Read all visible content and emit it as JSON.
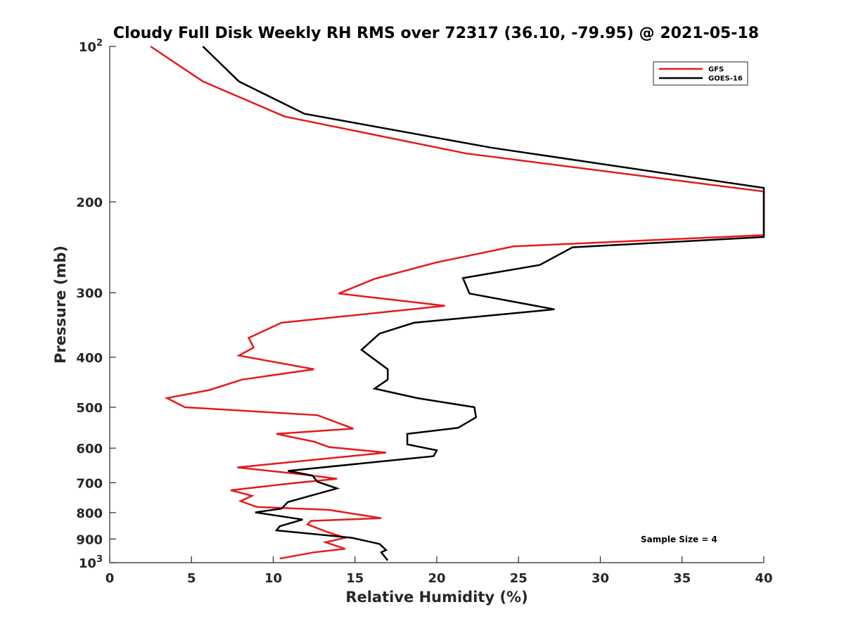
{
  "chart_data": {
    "type": "line",
    "title": "Cloudy Full Disk Weekly RH RMS over 72317 (36.10, -79.95) @ 2021-05-18",
    "xlabel": "Relative Humidity (%)",
    "ylabel": "Pressure (mb)",
    "xlim": [
      0,
      40
    ],
    "ylim": [
      100,
      1000
    ],
    "y_scale": "log",
    "y_reversed": true,
    "grid": false,
    "legend_position": "top-right",
    "x_ticks": [
      0,
      5,
      10,
      15,
      20,
      25,
      30,
      35,
      40
    ],
    "x_tick_labels": [
      "0",
      "5",
      "10",
      "15",
      "20",
      "25",
      "30",
      "35",
      "40"
    ],
    "y_ticks": [
      100,
      200,
      300,
      400,
      500,
      600,
      700,
      800,
      900,
      1000
    ],
    "y_tick_labels": [
      {
        "base": "10",
        "sup": "2"
      },
      {
        "base": "200",
        "sup": ""
      },
      {
        "base": "300",
        "sup": ""
      },
      {
        "base": "400",
        "sup": ""
      },
      {
        "base": "500",
        "sup": ""
      },
      {
        "base": "600",
        "sup": ""
      },
      {
        "base": "700",
        "sup": ""
      },
      {
        "base": "800",
        "sup": ""
      },
      {
        "base": "900",
        "sup": ""
      },
      {
        "base": "10",
        "sup": "3"
      }
    ],
    "annotation": "Sample Size = 4",
    "series": [
      {
        "name": "GFS",
        "color": "#e41a1c",
        "points": [
          [
            2.5,
            100
          ],
          [
            5.7,
            116.9
          ],
          [
            10.7,
            136.7
          ],
          [
            21.8,
            161.2
          ],
          [
            40,
            191
          ],
          [
            40,
            232
          ],
          [
            24.7,
            244
          ],
          [
            20,
            262
          ],
          [
            16.2,
            282
          ],
          [
            14,
            301
          ],
          [
            20.5,
            318
          ],
          [
            10.5,
            343
          ],
          [
            8.5,
            367
          ],
          [
            8.8,
            383
          ],
          [
            7.9,
            397
          ],
          [
            12.5,
            422
          ],
          [
            8.1,
            442
          ],
          [
            6.1,
            463
          ],
          [
            3.5,
            480
          ],
          [
            4.6,
            500
          ],
          [
            12.7,
            518
          ],
          [
            14.9,
            550
          ],
          [
            10.2,
            563
          ],
          [
            12.5,
            583
          ],
          [
            13.4,
            597
          ],
          [
            16.9,
            612
          ],
          [
            7.8,
            654
          ],
          [
            11.7,
            674
          ],
          [
            13.9,
            688
          ],
          [
            11.3,
            701
          ],
          [
            7.4,
            724
          ],
          [
            8.7,
            742
          ],
          [
            8,
            760
          ],
          [
            9,
            780
          ],
          [
            13.4,
            790
          ],
          [
            16.6,
            820
          ],
          [
            12.3,
            830
          ],
          [
            12.1,
            843
          ],
          [
            13.2,
            870
          ],
          [
            14.4,
            895
          ],
          [
            13.2,
            913
          ],
          [
            14.4,
            940
          ],
          [
            12.5,
            955
          ],
          [
            10.4,
            982
          ]
        ]
      },
      {
        "name": "GOES-16",
        "color": "#000000",
        "points": [
          [
            5.7,
            100
          ],
          [
            7.9,
            116.9
          ],
          [
            11.9,
            135
          ],
          [
            23.3,
            157
          ],
          [
            40,
            188
          ],
          [
            40,
            234
          ],
          [
            28.3,
            245
          ],
          [
            26.3,
            265
          ],
          [
            21.6,
            281
          ],
          [
            22,
            301
          ],
          [
            27.2,
            323
          ],
          [
            18.6,
            343
          ],
          [
            16.5,
            360
          ],
          [
            15.4,
            387
          ],
          [
            17,
            422
          ],
          [
            17,
            442
          ],
          [
            16.2,
            460
          ],
          [
            18.8,
            480
          ],
          [
            22.3,
            500
          ],
          [
            22.4,
            523
          ],
          [
            21.3,
            548
          ],
          [
            18.2,
            563
          ],
          [
            18.2,
            590
          ],
          [
            20,
            606
          ],
          [
            19.8,
            622
          ],
          [
            10.9,
            664
          ],
          [
            12.4,
            678
          ],
          [
            12.7,
            697
          ],
          [
            13.9,
            718
          ],
          [
            10.9,
            763
          ],
          [
            10.5,
            786
          ],
          [
            8.9,
            799
          ],
          [
            11.8,
            825
          ],
          [
            10.4,
            850
          ],
          [
            10.2,
            866
          ],
          [
            14.8,
            895
          ],
          [
            16.5,
            920
          ],
          [
            16.9,
            945
          ],
          [
            16.6,
            955
          ],
          [
            17,
            990
          ]
        ]
      }
    ]
  }
}
